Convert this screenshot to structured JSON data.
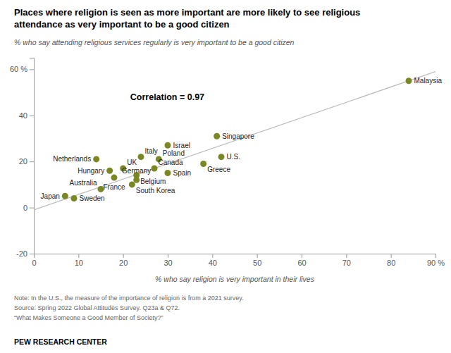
{
  "chart_data": {
    "type": "scatter",
    "title": [
      "Places where religion is seen as more important are more likely to see religious",
      "attendance as very important to be a good citizen"
    ],
    "subtitle": "% who say attending religious services regularly is very important to be a good citizen",
    "xlabel": "% who say religion is very important in their lives",
    "annotation": "Correlation = 0.97",
    "labels": [
      "Japan",
      "Sweden",
      "Netherlands",
      "Australia",
      "Hungary",
      "France",
      "UK",
      "South Korea",
      "Belgium",
      "Germany",
      "Italy",
      "Canada",
      "Poland",
      "Spain",
      "Israel",
      "Greece",
      "Singapore",
      "U.S.",
      "Malaysia"
    ],
    "x": [
      7,
      9,
      14,
      15,
      17,
      18,
      20,
      22,
      23,
      23,
      24,
      27,
      28,
      30,
      30,
      38,
      41,
      42,
      84
    ],
    "values": [
      5,
      4,
      21,
      8,
      16,
      13,
      17,
      10,
      14,
      12,
      22,
      17,
      21,
      15,
      27,
      19,
      31,
      22,
      55
    ],
    "color": "#7a8723",
    "trend": {
      "x": [
        0,
        90
      ],
      "values": [
        -1,
        59
      ],
      "color": "#bbbbbb"
    },
    "xlim": [
      0,
      90
    ],
    "ylim": [
      -20,
      65
    ],
    "xticks": [
      0,
      10,
      20,
      30,
      40,
      50,
      60,
      70,
      80,
      {
        "value": 90,
        "label": "90 %"
      }
    ],
    "yticks": [
      -20,
      0,
      20,
      40,
      {
        "value": 60,
        "label": "60 %"
      }
    ],
    "grid": false,
    "notes": [
      "Note: In the U.S., the measure of the importance of religion is from a 2021 survey.",
      "Source: Spring 2022 Global Attitudes Survey. Q23a & Q72.",
      "“What Makes Someone a Good Member of Society?”"
    ],
    "source": "PEW RESEARCH CENTER"
  }
}
